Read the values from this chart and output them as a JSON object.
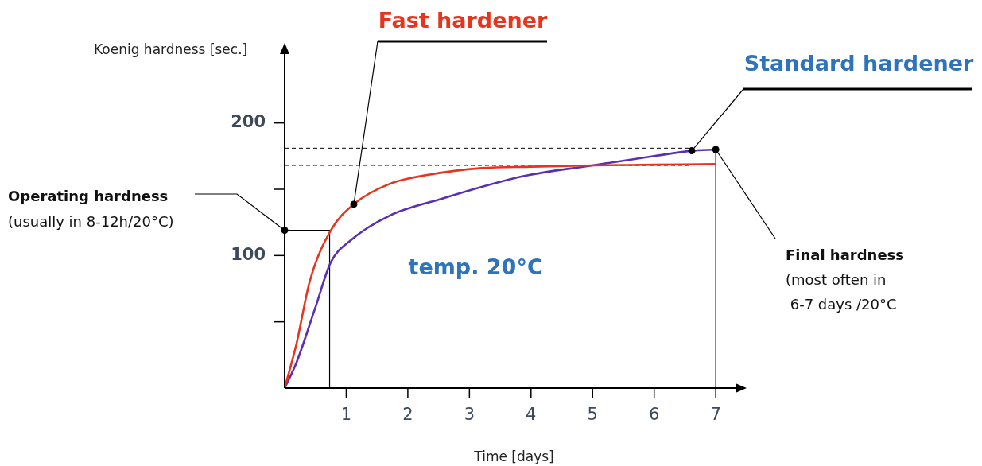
{
  "chart_data": {
    "type": "line",
    "xlabel": "Time [days]",
    "ylabel": "Koenig hardness [sec.]",
    "xlim": [
      0,
      7.45
    ],
    "ylim": [
      0,
      258
    ],
    "xticks": [
      1,
      2,
      3,
      4,
      5,
      6,
      7
    ],
    "yticks": [
      {
        "value": 50,
        "label": null
      },
      100,
      {
        "value": 150,
        "label": null
      },
      200
    ],
    "grid": false,
    "legend": false,
    "line_style": "solid",
    "series": [
      {
        "name": "Fast hardener",
        "color": "#e8341c",
        "x": [
          0,
          0.19,
          0.41,
          0.75,
          1.13,
          1.7,
          2.34,
          3.2,
          4,
          5,
          6,
          7
        ],
        "values": [
          0,
          33,
          81,
          119,
          139,
          154,
          161,
          166,
          167,
          168,
          168.5,
          169
        ]
      },
      {
        "name": "Standard hardener",
        "color": "#5a2fb8",
        "x": [
          0,
          0.19,
          0.5,
          0.75,
          1.06,
          1.7,
          2.56,
          3.89,
          5,
          6,
          6.6,
          7
        ],
        "values": [
          0,
          19,
          61,
          95,
          111,
          130,
          143,
          160,
          168,
          175,
          179,
          180
        ]
      },
      {
        "color": "#000000",
        "x": [
          0,
          0.73,
          0.73
        ],
        "values": [
          119,
          119,
          0
        ]
      },
      {
        "color": "#000000",
        "x": [
          7,
          7
        ],
        "values": [
          0,
          180
        ]
      }
    ],
    "ref_lines": [
      {
        "axis": "y",
        "value": 181,
        "line_style": "dashed"
      },
      {
        "axis": "y",
        "value": 168,
        "line_style": "dashed"
      }
    ],
    "annotations": [
      "Operating hardness\n(usually in 8-12h/20°C)",
      {
        "text": "Final hardness\n(most often in\n 6-7 days /20°C",
        "x": 7,
        "y": 180
      },
      "temp. 20°C"
    ]
  }
}
